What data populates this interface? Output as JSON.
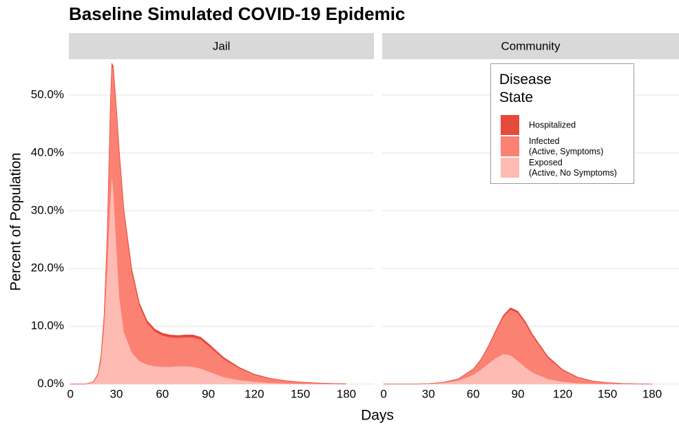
{
  "chart_data": {
    "type": "area",
    "stacked": true,
    "title": "Baseline Simulated COVID-19 Epidemic",
    "x_label": "Days",
    "y_label": "Percent of Population",
    "legend_title": "Disease\nState",
    "legend": "top-right",
    "grid": true,
    "xlim": [
      -1,
      198
    ],
    "xticks": [
      0,
      30,
      60,
      90,
      120,
      150,
      180
    ],
    "ylim": [
      -0.3,
      56.2
    ],
    "yticks": [
      {
        "value": 0,
        "label": "0.0%"
      },
      {
        "value": 10,
        "label": "10.0%"
      },
      {
        "value": 20,
        "label": "20.0%"
      },
      {
        "value": 30,
        "label": "30.0%"
      },
      {
        "value": 40,
        "label": "40.0%"
      },
      {
        "value": 50,
        "label": "50.0%"
      }
    ],
    "panels": [
      {
        "name": "Jail",
        "x": [
          0,
          10,
          15,
          18,
          20,
          22,
          24,
          26,
          27,
          28,
          30,
          32,
          35,
          40,
          45,
          50,
          55,
          60,
          65,
          70,
          75,
          80,
          85,
          90,
          95,
          100,
          110,
          120,
          130,
          140,
          150,
          160,
          170,
          180
        ],
        "series": [
          {
            "name": "Exposed\n(Active, No Symptoms)",
            "color": "#fdbbb3",
            "values": [
              0,
              0,
              0.3,
              1.5,
              4,
              10,
              20,
              32,
              36,
              34,
              24,
              15,
              9,
              5.5,
              4,
              3.4,
              3.1,
              3,
              3,
              3.1,
              3.1,
              3.0,
              2.7,
              2.2,
              1.7,
              1.2,
              0.7,
              0.4,
              0.2,
              0.1,
              0.05,
              0.02,
              0.01,
              0
            ]
          },
          {
            "name": "Infected\n(Active, Symptoms)",
            "color": "#fb8173",
            "values": [
              0,
              0,
              0.1,
              0.3,
              1,
              1.95,
              5.9,
              15.8,
              19.2,
              20.65,
              23.6,
              24.6,
              20.6,
              14.1,
              9.6,
              7.2,
              6.0,
              5.4,
              5.1,
              4.9,
              5.0,
              5.1,
              5.0,
              4.45,
              3.8,
              3.15,
              2.05,
              1.2,
              0.75,
              0.47,
              0.28,
              0.17,
              0.09,
              0.05
            ]
          },
          {
            "name": "Hospitalized",
            "color": "#e64a3a",
            "values": [
              0,
              0,
              0,
              0,
              0,
              0.05,
              0.1,
              0.2,
              0.3,
              0.35,
              0.4,
              0.4,
              0.4,
              0.4,
              0.4,
              0.4,
              0.4,
              0.4,
              0.4,
              0.4,
              0.4,
              0.4,
              0.4,
              0.35,
              0.3,
              0.25,
              0.15,
              0.1,
              0.05,
              0.03,
              0.02,
              0.01,
              0,
              0
            ]
          }
        ]
      },
      {
        "name": "Community",
        "x": [
          0,
          20,
          30,
          40,
          50,
          60,
          65,
          70,
          75,
          80,
          85,
          90,
          95,
          100,
          110,
          120,
          130,
          140,
          150,
          160,
          170,
          180
        ],
        "series": [
          {
            "name": "Exposed\n(Active, No Symptoms)",
            "color": "#fdbbb3",
            "values": [
              0,
              0,
              0.05,
              0.2,
              0.6,
              1.6,
              2.5,
              3.5,
              4.5,
              5.2,
              5.0,
              4.0,
              2.9,
              2.0,
              0.9,
              0.4,
              0.15,
              0.06,
              0.02,
              0.01,
              0,
              0
            ]
          },
          {
            "name": "Infected\n(Active, Symptoms)",
            "color": "#fb8173",
            "values": [
              0,
              0,
              0.01,
              0.1,
              0.28,
              0.95,
              1.62,
              2.88,
              4.52,
              6.35,
              7.9,
              8.28,
              7.6,
              6.23,
              3.7,
              1.98,
              0.99,
              0.46,
              0.22,
              0.09,
              0.04,
              0.02
            ]
          },
          {
            "name": "Hospitalized",
            "color": "#e64a3a",
            "values": [
              0,
              0,
              0,
              0,
              0.02,
              0.05,
              0.08,
              0.12,
              0.18,
              0.25,
              0.3,
              0.32,
              0.3,
              0.27,
              0.2,
              0.12,
              0.06,
              0.03,
              0.01,
              0,
              0,
              0
            ]
          }
        ]
      }
    ]
  }
}
